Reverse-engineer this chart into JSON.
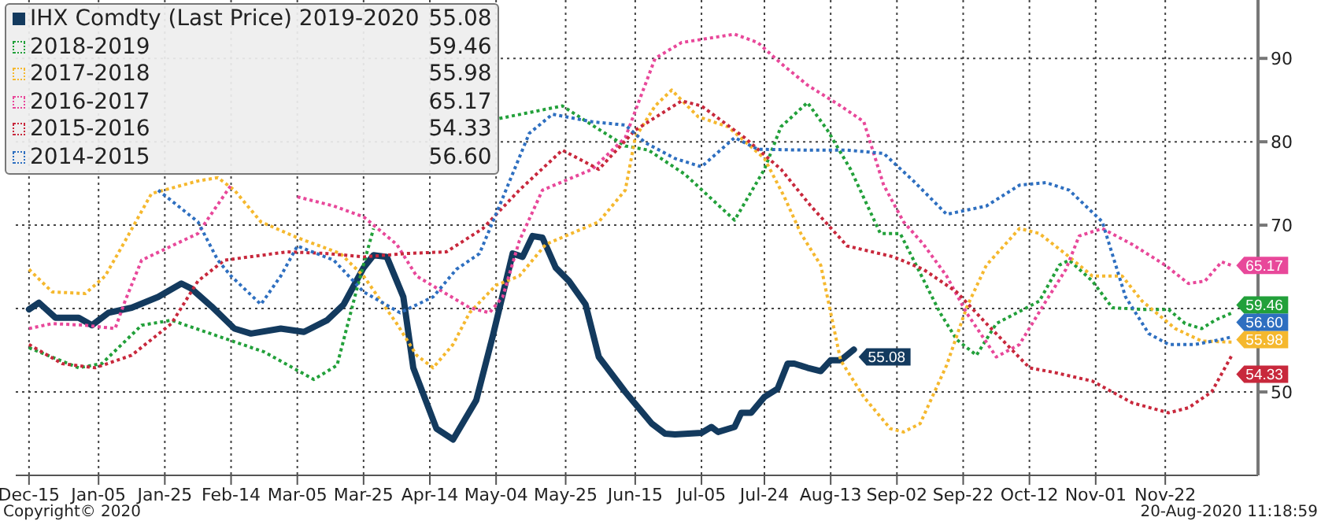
{
  "chart_data": {
    "type": "line",
    "legend": "top left",
    "grid": true,
    "marker": "none",
    "xlim": [
      "2019-12-11",
      "2020-12-20"
    ],
    "ylim": [
      40,
      97
    ],
    "xticks": [
      {
        "value": "2019-12-15",
        "label": "Dec-15"
      },
      {
        "value": "2020-01-05",
        "label": "Jan-05"
      },
      {
        "value": "2020-01-25",
        "label": "Jan-25"
      },
      {
        "value": "2020-02-14",
        "label": "Feb-14"
      },
      {
        "value": "2020-03-05",
        "label": "Mar-05"
      },
      {
        "value": "2020-03-25",
        "label": "Mar-25"
      },
      {
        "value": "2020-04-14",
        "label": "Apr-14"
      },
      {
        "value": "2020-05-04",
        "label": "May-04"
      },
      {
        "value": "2020-05-25",
        "label": "May-25"
      },
      {
        "value": "2020-06-15",
        "label": "Jun-15"
      },
      {
        "value": "2020-07-05",
        "label": "Jul-05"
      },
      {
        "value": "2020-07-24",
        "label": "Jul-24"
      },
      {
        "value": "2020-08-13",
        "label": "Aug-13"
      },
      {
        "value": "2020-09-02",
        "label": "Sep-02"
      },
      {
        "value": "2020-09-22",
        "label": "Sep-22"
      },
      {
        "value": "2020-10-12",
        "label": "Oct-12"
      },
      {
        "value": "2020-11-01",
        "label": "Nov-01"
      },
      {
        "value": "2020-11-22",
        "label": "Nov-22"
      }
    ],
    "yticks": [
      50,
      {
        "value": 60,
        "label": null
      },
      70,
      80,
      90
    ],
    "annotations": [
      "Copyright© 2020",
      "20-Aug-2020 11:18:59"
    ],
    "series": [
      {
        "name": "IHX Comdty (Last Price) 2019-2020",
        "color": "#133a5e",
        "line_style": "solid",
        "x": [
          "2019-12-15",
          "2019-12-18",
          "2019-12-23",
          "2019-12-30",
          "2020-01-03",
          "2020-01-08",
          "2020-01-15",
          "2020-01-23",
          "2020-01-30",
          "2020-02-02",
          "2020-02-08",
          "2020-02-15",
          "2020-02-20",
          "2020-02-29",
          "2020-03-07",
          "2020-03-14",
          "2020-03-19",
          "2020-03-25",
          "2020-03-28",
          "2020-04-01",
          "2020-04-06",
          "2020-04-09",
          "2020-04-16",
          "2020-04-21",
          "2020-04-28",
          "2020-05-03",
          "2020-05-09",
          "2020-05-12",
          "2020-05-15",
          "2020-05-18",
          "2020-05-22",
          "2020-05-26",
          "2020-05-31",
          "2020-06-04",
          "2020-06-12",
          "2020-06-20",
          "2020-06-24",
          "2020-06-27",
          "2020-07-05",
          "2020-07-08",
          "2020-07-10",
          "2020-07-15",
          "2020-07-17",
          "2020-07-20",
          "2020-07-24",
          "2020-07-28",
          "2020-07-31",
          "2020-08-02",
          "2020-08-06",
          "2020-08-10",
          "2020-08-13",
          "2020-08-16",
          "2020-08-20"
        ],
        "values": [
          59.9,
          60.7,
          58.9,
          58.9,
          58,
          59.5,
          60.1,
          61.4,
          63,
          62.4,
          60.3,
          57.6,
          57,
          57.6,
          57.2,
          58.6,
          60.5,
          64.9,
          66.4,
          66.2,
          61.4,
          52.9,
          45.6,
          44.3,
          49,
          56.7,
          66.6,
          66.2,
          68.7,
          68.5,
          64.9,
          63.3,
          60.5,
          54.2,
          50,
          46.2,
          45,
          44.9,
          45.1,
          45.8,
          45.2,
          45.8,
          47.5,
          47.5,
          49.4,
          50.4,
          53.4,
          53.4,
          52.9,
          52.5,
          53.8,
          53.8,
          55.08
        ],
        "value_labels": [
          null,
          null,
          null,
          null,
          null,
          null,
          null,
          null,
          null,
          null,
          null,
          null,
          null,
          null,
          null,
          null,
          null,
          null,
          null,
          null,
          null,
          null,
          null,
          null,
          null,
          null,
          null,
          null,
          null,
          null,
          null,
          null,
          null,
          null,
          null,
          null,
          null,
          null,
          null,
          null,
          null,
          null,
          null,
          null,
          null,
          null,
          null,
          null,
          null,
          null,
          null,
          null,
          "55.08"
        ]
      },
      {
        "name": "2018-2019",
        "color": "#22a03a",
        "line_style": "dotted",
        "x": [
          "2019-12-15",
          "2019-12-30",
          "2020-01-06",
          "2020-01-18",
          "2020-01-27",
          "2020-02-10",
          "2020-02-24",
          "2020-03-10",
          "2020-03-17",
          "2020-03-23",
          "2020-03-28",
          "2020-04-02",
          "2020-04-08",
          "2020-04-16",
          "2020-04-26",
          "2020-05-05",
          "2020-05-14",
          "2020-05-24",
          "2020-06-02",
          "2020-06-12",
          "2020-06-19",
          "2020-06-30",
          "2020-07-15",
          "2020-07-24",
          "2020-07-29",
          "2020-08-06",
          "2020-08-12",
          "2020-08-19",
          "2020-08-28",
          "2020-09-03",
          "2020-09-15",
          "2020-09-20",
          "2020-09-26",
          "2020-10-02",
          "2020-10-15",
          "2020-10-21",
          "2020-10-24",
          "2020-10-31",
          "2020-11-06",
          "2020-11-15",
          "2020-11-23",
          "2020-11-28",
          "2020-12-03",
          "2020-12-07",
          "2020-12-12"
        ],
        "values": [
          55.3,
          52.9,
          53.4,
          58,
          58.6,
          56.7,
          54.8,
          51.5,
          53.2,
          62.4,
          69.6,
          null,
          null,
          null,
          null,
          82.8,
          83.5,
          84.3,
          82,
          79.5,
          79,
          76.1,
          70.6,
          76.7,
          81.8,
          84.7,
          81.4,
          76.7,
          69,
          69,
          59.5,
          56.3,
          54.4,
          58.2,
          60.9,
          65.2,
          65.8,
          63.3,
          60.1,
          59.9,
          59.9,
          58.2,
          57.6,
          58.6,
          59.46
        ],
        "value_labels": [
          null,
          null,
          null,
          null,
          null,
          null,
          null,
          null,
          null,
          null,
          null,
          null,
          null,
          null,
          null,
          null,
          null,
          null,
          null,
          null,
          null,
          null,
          null,
          null,
          null,
          null,
          null,
          null,
          null,
          null,
          null,
          null,
          null,
          null,
          null,
          null,
          null,
          null,
          null,
          null,
          null,
          null,
          null,
          null,
          "59.46"
        ]
      },
      {
        "name": "2017-2018",
        "color": "#f5b82e",
        "line_style": "dotted",
        "x": [
          "2019-12-15",
          "2019-12-22",
          "2020-01-01",
          "2020-01-07",
          "2020-01-13",
          "2020-01-21",
          "2020-02-04",
          "2020-02-10",
          "2020-02-15",
          "2020-02-23",
          "2020-03-05",
          "2020-03-18",
          "2020-03-25",
          "2020-04-04",
          "2020-04-10",
          "2020-04-15",
          "2020-04-21",
          "2020-04-26",
          "2020-05-04",
          "2020-05-11",
          "2020-05-19",
          "2020-06-04",
          "2020-06-12",
          "2020-06-15",
          "2020-06-21",
          "2020-06-26",
          "2020-07-04",
          "2020-07-13",
          "2020-07-24",
          "2020-07-30",
          "2020-08-04",
          "2020-08-10",
          "2020-08-16",
          "2020-08-23",
          "2020-08-31",
          "2020-09-04",
          "2020-09-09",
          "2020-09-17",
          "2020-09-23",
          "2020-09-29",
          "2020-10-09",
          "2020-10-15",
          "2020-10-24",
          "2020-10-31",
          "2020-11-09",
          "2020-11-15",
          "2020-11-25",
          "2020-12-03",
          "2020-12-12"
        ],
        "values": [
          64.7,
          62,
          61.8,
          63.9,
          68.1,
          73.8,
          75.3,
          75.7,
          74.2,
          70.4,
          68.5,
          66.6,
          63.9,
          58.2,
          54.4,
          52.9,
          55.7,
          59.5,
          62.8,
          63.9,
          67.7,
          70.4,
          74.2,
          80.5,
          84.3,
          86.2,
          83,
          81.8,
          78,
          73.4,
          69,
          65.2,
          53.8,
          49.4,
          45.6,
          45.2,
          46.2,
          53.2,
          60.1,
          65.2,
          69.6,
          69,
          66.2,
          63.9,
          63.9,
          60.9,
          57.6,
          56.1,
          55.98
        ],
        "value_labels": [
          null,
          null,
          null,
          null,
          null,
          null,
          null,
          null,
          null,
          null,
          null,
          null,
          null,
          null,
          null,
          null,
          null,
          null,
          null,
          null,
          null,
          null,
          null,
          null,
          null,
          null,
          null,
          null,
          null,
          null,
          null,
          null,
          null,
          null,
          null,
          null,
          null,
          null,
          null,
          null,
          null,
          null,
          null,
          null,
          null,
          null,
          null,
          null,
          "55.98"
        ]
      },
      {
        "name": "2016-2017",
        "color": "#e8489a",
        "line_style": "dotted",
        "x": [
          "2019-12-15",
          "2019-12-22",
          "2020-01-01",
          "2020-01-10",
          "2020-01-13",
          "2020-01-18",
          "2020-01-27",
          "2020-02-04",
          "2020-02-14",
          "2020-02-23",
          "2020-02-29",
          "2020-03-05",
          "2020-03-16",
          "2020-03-25",
          "2020-04-04",
          "2020-04-10",
          "2020-04-26",
          "2020-05-02",
          "2020-05-06",
          "2020-05-11",
          "2020-05-18",
          "2020-06-02",
          "2020-06-12",
          "2020-06-21",
          "2020-06-29",
          "2020-07-15",
          "2020-07-22",
          "2020-07-29",
          "2020-08-06",
          "2020-08-16",
          "2020-08-23",
          "2020-08-29",
          "2020-09-04",
          "2020-09-10",
          "2020-09-17",
          "2020-09-23",
          "2020-10-02",
          "2020-10-09",
          "2020-10-17",
          "2020-10-23",
          "2020-10-27",
          "2020-11-03",
          "2020-11-12",
          "2020-11-22",
          "2020-11-29",
          "2020-12-04",
          "2020-12-09",
          "2020-12-12"
        ],
        "values": [
          57.6,
          58.2,
          58,
          57.6,
          60.9,
          65.8,
          67.5,
          69,
          74.8,
          null,
          null,
          73.4,
          72.3,
          71,
          67.7,
          63.9,
          60.1,
          59.5,
          61.4,
          68.1,
          74.2,
          76.7,
          80.5,
          90,
          91.9,
          92.9,
          91.9,
          89.4,
          86.8,
          84.3,
          82.4,
          74.8,
          70.4,
          67.7,
          63.9,
          59.5,
          54.2,
          55.7,
          60.9,
          64.7,
          68.7,
          69.6,
          67.7,
          65.2,
          63,
          63.3,
          65.6,
          65.17
        ],
        "value_labels": [
          null,
          null,
          null,
          null,
          null,
          null,
          null,
          null,
          null,
          null,
          null,
          null,
          null,
          null,
          null,
          null,
          null,
          null,
          null,
          null,
          null,
          null,
          null,
          null,
          null,
          null,
          null,
          null,
          null,
          null,
          null,
          null,
          null,
          null,
          null,
          null,
          null,
          null,
          null,
          null,
          null,
          null,
          null,
          null,
          null,
          null,
          null,
          "65.17"
        ]
      },
      {
        "name": "2015-2016",
        "color": "#c8283c",
        "line_style": "dotted",
        "x": [
          "2019-12-15",
          "2019-12-25",
          "2020-01-04",
          "2020-01-15",
          "2020-01-27",
          "2020-02-04",
          "2020-02-12",
          "2020-03-02",
          "2020-03-14",
          "2020-03-25",
          "2020-04-07",
          "2020-04-19",
          "2020-04-30",
          "2020-05-11",
          "2020-05-24",
          "2020-06-04",
          "2020-06-15",
          "2020-06-29",
          "2020-07-05",
          "2020-07-18",
          "2020-07-29",
          "2020-08-07",
          "2020-08-18",
          "2020-09-01",
          "2020-09-10",
          "2020-09-20",
          "2020-09-29",
          "2020-10-12",
          "2020-10-20",
          "2020-10-31",
          "2020-11-12",
          "2020-11-23",
          "2020-11-29",
          "2020-12-06",
          "2020-12-12"
        ],
        "values": [
          55.7,
          53.4,
          52.9,
          54.4,
          58.2,
          63.3,
          65.8,
          66.8,
          66.6,
          66.2,
          66.6,
          66.8,
          69.6,
          74.2,
          79,
          76.7,
          81.4,
          84.9,
          84.3,
          80.5,
          76.7,
          72.3,
          67.5,
          66.2,
          64.7,
          62,
          58.2,
          52.9,
          52.3,
          51.3,
          48.7,
          47.5,
          48.1,
          50,
          54.33
        ],
        "value_labels": [
          null,
          null,
          null,
          null,
          null,
          null,
          null,
          null,
          null,
          null,
          null,
          null,
          null,
          null,
          null,
          null,
          null,
          null,
          null,
          null,
          null,
          null,
          null,
          null,
          null,
          null,
          null,
          null,
          null,
          null,
          null,
          null,
          null,
          null,
          "54.33"
        ]
      },
      {
        "name": "2014-2015",
        "color": "#2e6fc0",
        "line_style": "dotted",
        "x": [
          "2020-01-23",
          "2020-02-04",
          "2020-02-10",
          "2020-02-14",
          "2020-02-23",
          "2020-02-29",
          "2020-03-05",
          "2020-03-16",
          "2020-03-25",
          "2020-04-05",
          "2020-04-15",
          "2020-04-22",
          "2020-04-29",
          "2020-05-05",
          "2020-05-14",
          "2020-05-21",
          "2020-06-02",
          "2020-06-12",
          "2020-06-18",
          "2020-06-27",
          "2020-07-05",
          "2020-07-15",
          "2020-07-22",
          "2020-08-06",
          "2020-08-18",
          "2020-08-29",
          "2020-09-07",
          "2020-09-17",
          "2020-09-29",
          "2020-10-09",
          "2020-10-17",
          "2020-10-24",
          "2020-11-03",
          "2020-11-10",
          "2020-11-17",
          "2020-11-23",
          "2020-12-01",
          "2020-12-09",
          "2020-12-12"
        ],
        "values": [
          74.2,
          70.4,
          65.8,
          63.9,
          60.5,
          63.9,
          67.5,
          65.8,
          62,
          59.5,
          61.4,
          64.7,
          66.6,
          72.3,
          81,
          83.3,
          82.4,
          82,
          79.9,
          78,
          77,
          80.5,
          79.1,
          79,
          79,
          78.6,
          75.3,
          71.3,
          72.3,
          74.8,
          75.1,
          74.2,
          70.4,
          61.4,
          57,
          55.7,
          55.7,
          56.3,
          56.6
        ],
        "value_labels": [
          null,
          null,
          null,
          null,
          null,
          null,
          null,
          null,
          null,
          null,
          null,
          null,
          null,
          null,
          null,
          null,
          null,
          null,
          null,
          null,
          null,
          null,
          null,
          null,
          null,
          null,
          null,
          null,
          null,
          null,
          null,
          null,
          null,
          null,
          null,
          null,
          null,
          null,
          "56.60"
        ]
      }
    ]
  }
}
